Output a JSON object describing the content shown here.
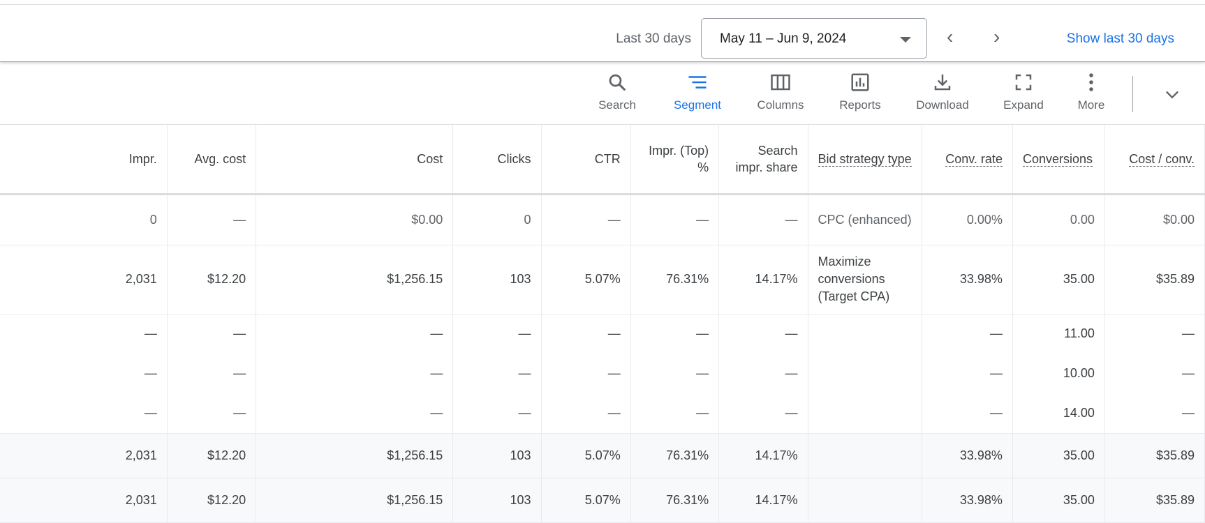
{
  "date_bar": {
    "range_label": "Last 30 days",
    "date_range": "May 11 – Jun 9, 2024",
    "prev_label": "‹",
    "next_label": "›",
    "show_last": "Show last 30 days"
  },
  "toolbar": [
    {
      "label": "Search",
      "icon": "search-icon"
    },
    {
      "label": "Segment",
      "icon": "segment-icon",
      "active": true
    },
    {
      "label": "Columns",
      "icon": "columns-icon"
    },
    {
      "label": "Reports",
      "icon": "reports-icon"
    },
    {
      "label": "Download",
      "icon": "download-icon"
    },
    {
      "label": "Expand",
      "icon": "expand-icon"
    },
    {
      "label": "More",
      "icon": "more-vert-icon"
    }
  ],
  "accent": "#1a73e8",
  "table": {
    "headers": [
      "Impr.",
      "Avg. cost",
      "Cost",
      "Clicks",
      "CTR",
      "Impr. (Top) %",
      "Search impr. share",
      "Bid strategy type",
      "Conv. rate",
      "Conversions",
      "Cost / conv."
    ],
    "rows": [
      [
        "0",
        "—",
        "$0.00",
        "0",
        "—",
        "—",
        "—",
        "CPC (enhanced)",
        "0.00%",
        "0.00",
        "$0.00"
      ],
      [
        "2,031",
        "$12.20",
        "$1,256.15",
        "103",
        "5.07%",
        "76.31%",
        "14.17%",
        "Maximize conversions (Target CPA)",
        "33.98%",
        "35.00",
        "$35.89"
      ],
      [
        "—",
        "—",
        "—",
        "—",
        "—",
        "—",
        "—",
        "",
        "—",
        "11.00",
        "—"
      ],
      [
        "—",
        "—",
        "—",
        "—",
        "—",
        "—",
        "—",
        "",
        "—",
        "10.00",
        "—"
      ],
      [
        "—",
        "—",
        "—",
        "—",
        "—",
        "—",
        "—",
        "",
        "—",
        "14.00",
        "—"
      ],
      [
        "2,031",
        "$12.20",
        "$1,256.15",
        "103",
        "5.07%",
        "76.31%",
        "14.17%",
        "",
        "33.98%",
        "35.00",
        "$35.89"
      ],
      [
        "2,031",
        "$12.20",
        "$1,256.15",
        "103",
        "5.07%",
        "76.31%",
        "14.17%",
        "",
        "33.98%",
        "35.00",
        "$35.89"
      ]
    ]
  }
}
